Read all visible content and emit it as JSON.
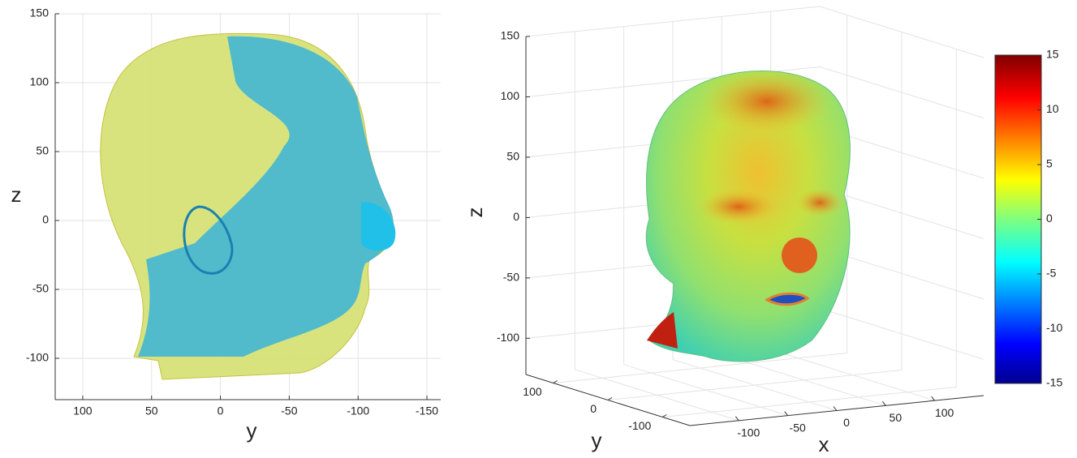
{
  "chart_data": [
    {
      "type": "surface-2d",
      "xlabel": "y",
      "ylabel": "z",
      "xlim": [
        120,
        -160
      ],
      "xticks": [
        100,
        50,
        0,
        -50,
        -100,
        -150
      ],
      "ylim": [
        -130,
        150
      ],
      "yticks": [
        -100,
        -50,
        0,
        50,
        100,
        150
      ],
      "grid": true
    },
    {
      "type": "surface-3d",
      "xlabel": "x",
      "ylabel": "y",
      "zlabel": "z",
      "xlim": [
        -150,
        150
      ],
      "xticks": [
        -100,
        -50,
        0,
        50,
        100
      ],
      "ylim": [
        150,
        -150
      ],
      "yticks": [
        100,
        0,
        -100
      ],
      "zlim": [
        -130,
        150
      ],
      "zticks": [
        -100,
        -50,
        0,
        50,
        100,
        150
      ],
      "grid": true,
      "colorbar": {
        "clim": [
          -15,
          15
        ],
        "ticks": [
          -15,
          -10,
          -5,
          0,
          5,
          10,
          15
        ]
      }
    }
  ]
}
